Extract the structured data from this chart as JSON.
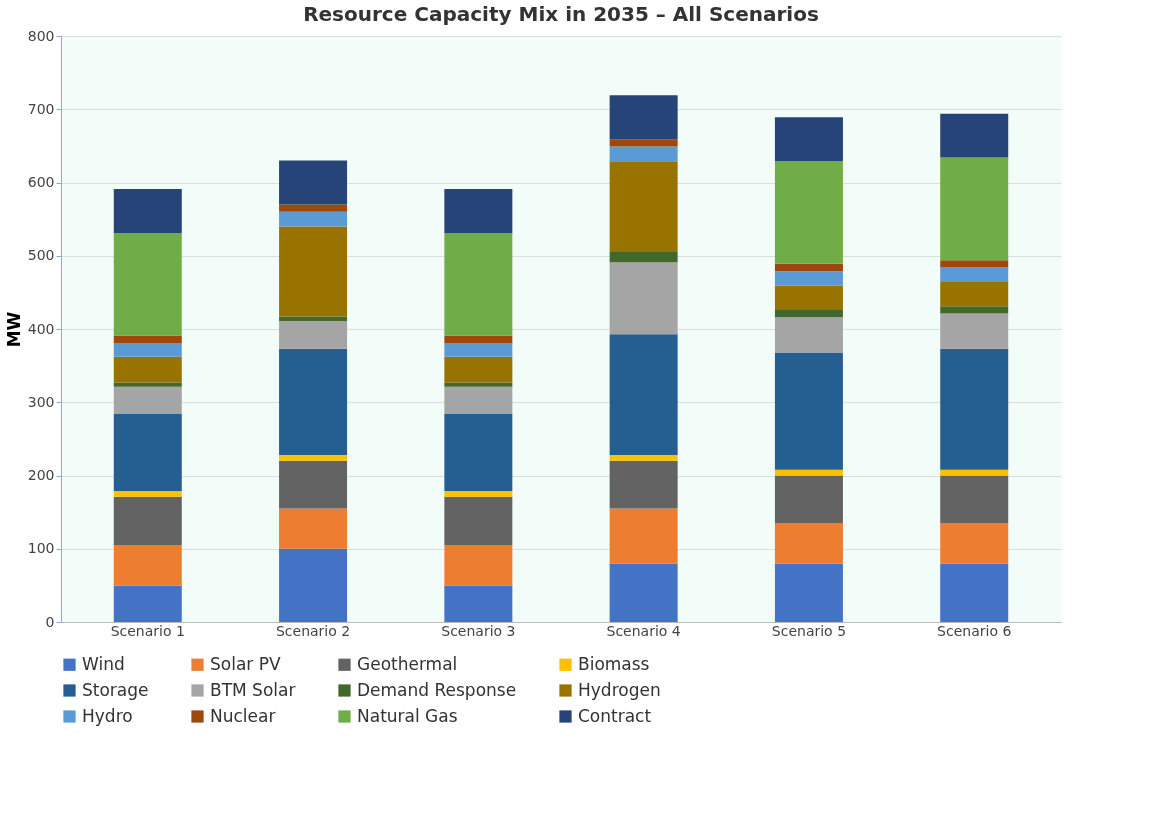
{
  "chart_data": {
    "type": "bar",
    "title": "Resource Capacity Mix in 2035 – All Scenarios",
    "ylabel": "MW",
    "categories": [
      "Scenario 1",
      "Scenario 2",
      "Scenario 3",
      "Scenario 4",
      "Scenario 5",
      "Scenario 6"
    ],
    "stacked": true,
    "ylim": [
      0,
      800
    ],
    "yticks": [
      0,
      100,
      200,
      300,
      400,
      500,
      600,
      700,
      800
    ],
    "grid": "y",
    "legend": "bottom",
    "series": [
      {
        "name": "Wind",
        "color": "#4472c4",
        "values": [
          50,
          100,
          50,
          80,
          80,
          80
        ]
      },
      {
        "name": "Solar PV",
        "color": "#ed7d31",
        "values": [
          55,
          55,
          55,
          75,
          55,
          55
        ]
      },
      {
        "name": "Geothermal",
        "color": "#636363",
        "values": [
          66,
          65,
          66,
          65,
          65,
          65
        ]
      },
      {
        "name": "Biomass",
        "color": "#ffc000",
        "values": [
          8,
          8,
          8,
          8,
          8,
          8
        ]
      },
      {
        "name": "Storage",
        "color": "#255e91",
        "values": [
          105,
          145,
          105,
          165,
          160,
          165
        ]
      },
      {
        "name": "BTM Solar",
        "color": "#a5a5a5",
        "values": [
          37,
          38,
          37,
          98,
          48,
          48
        ]
      },
      {
        "name": "Demand Response",
        "color": "#43682b",
        "values": [
          6,
          6,
          6,
          14,
          10,
          10
        ]
      },
      {
        "name": "Hydrogen",
        "color": "#997300",
        "values": [
          35,
          123,
          35,
          124,
          33,
          33
        ]
      },
      {
        "name": "Hydro",
        "color": "#5b9bd5",
        "values": [
          19,
          20,
          19,
          20,
          20,
          20
        ]
      },
      {
        "name": "Nuclear",
        "color": "#9e480e",
        "values": [
          10,
          10,
          10,
          10,
          10,
          10
        ]
      },
      {
        "name": "Natural Gas",
        "color": "#70ad47",
        "values": [
          140,
          0,
          140,
          0,
          140,
          140
        ]
      },
      {
        "name": "Contract",
        "color": "#264478",
        "values": [
          60,
          60,
          60,
          60,
          60,
          60
        ]
      }
    ]
  }
}
